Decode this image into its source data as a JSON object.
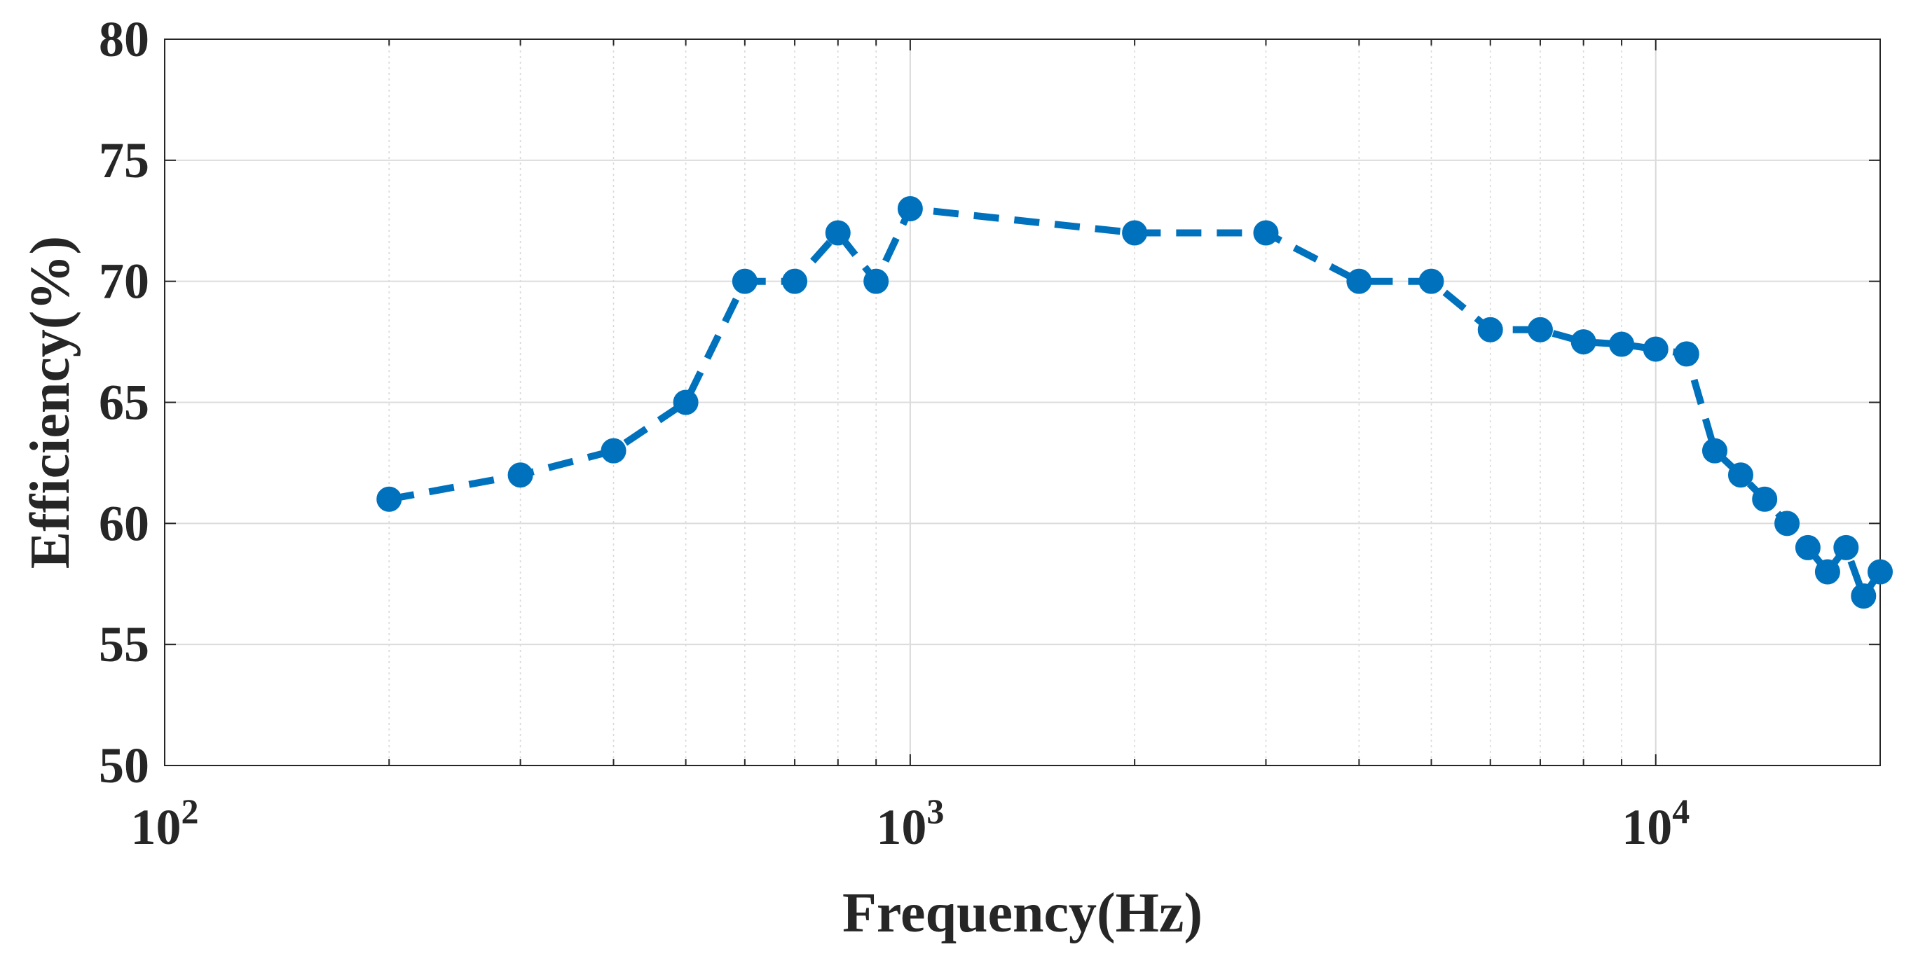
{
  "chart_data": {
    "type": "line",
    "title": "",
    "xlabel": "Frequency(Hz)",
    "ylabel": "Efficiency(%)",
    "xscale": "log",
    "xlim": [
      100,
      20000
    ],
    "ylim": [
      50,
      80
    ],
    "yticks": [
      50,
      55,
      60,
      65,
      70,
      75,
      80
    ],
    "xticks": [
      {
        "value": 100,
        "base": "10",
        "exp": "2"
      },
      {
        "value": 1000,
        "base": "10",
        "exp": "3"
      },
      {
        "value": 10000,
        "base": "10",
        "exp": "4"
      }
    ],
    "grid": true,
    "series": [
      {
        "name": "Efficiency",
        "color": "#0072BD",
        "line_style": "dashed",
        "marker": "circle",
        "x": [
          200,
          300,
          400,
          500,
          600,
          700,
          800,
          900,
          1000,
          2000,
          3000,
          4000,
          5000,
          6000,
          7000,
          8000,
          9000,
          10000,
          11000,
          12000,
          13000,
          14000,
          15000,
          16000,
          17000,
          18000,
          19000,
          20000
        ],
        "y": [
          61,
          62,
          63,
          65,
          70,
          70,
          72,
          70,
          73,
          72,
          72,
          70,
          70,
          68,
          68,
          67.5,
          67.4,
          67.2,
          67,
          63,
          62,
          61,
          60,
          59,
          58,
          59,
          57,
          58
        ]
      }
    ]
  }
}
